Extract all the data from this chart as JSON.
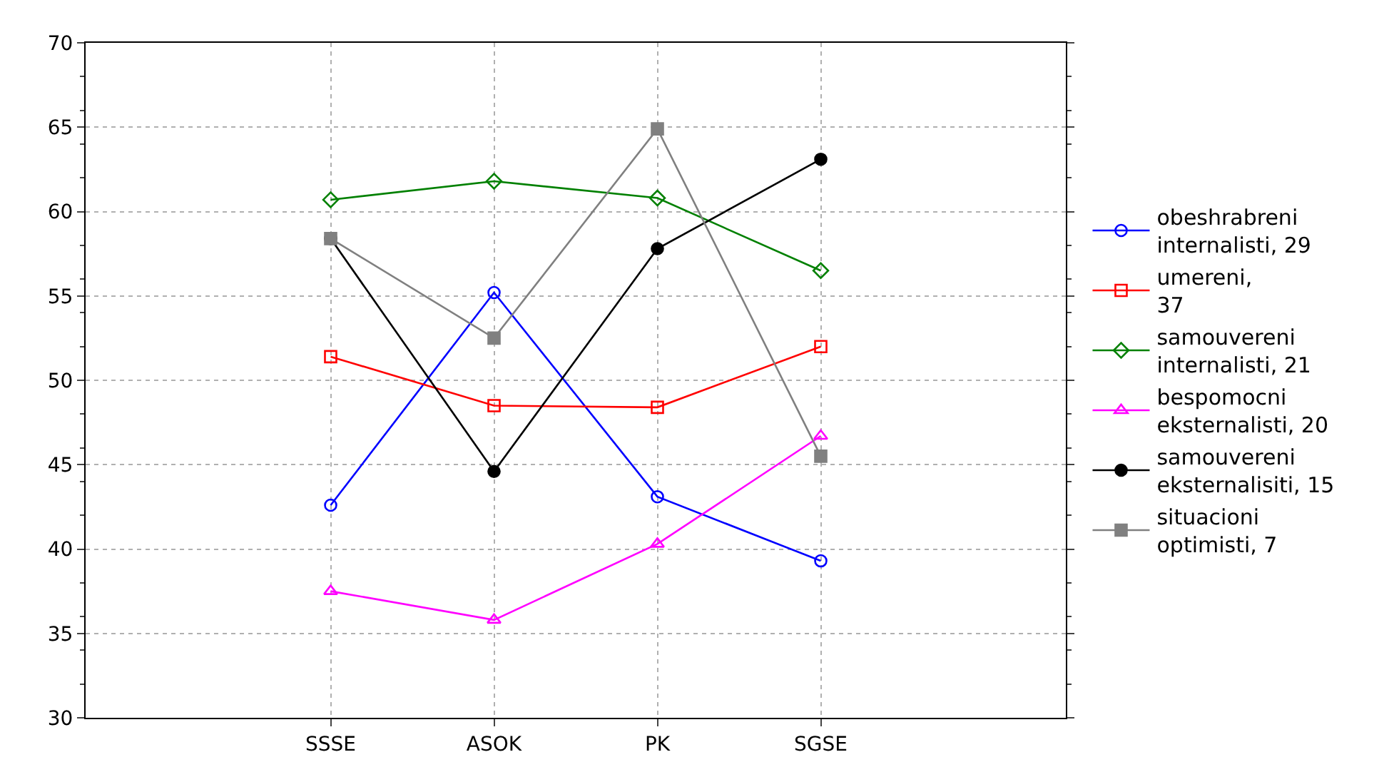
{
  "chart_data": {
    "type": "line",
    "categories": [
      "SSSE",
      "ASOK",
      "PK",
      "SGSE"
    ],
    "ylim": [
      30,
      70
    ],
    "yticks": [
      30,
      35,
      40,
      45,
      50,
      55,
      60,
      65,
      70
    ],
    "grid": true,
    "legend": "right",
    "line_style": "solid",
    "series": [
      {
        "name": "obeshrabreni\ninternalisti, 29",
        "color": "#0000ff",
        "marker": "circle",
        "values": [
          42.6,
          55.2,
          43.1,
          39.3
        ]
      },
      {
        "name": "umereni,\n37",
        "color": "#ff0000",
        "marker": "square",
        "values": [
          51.4,
          48.5,
          48.4,
          52.0
        ]
      },
      {
        "name": "samouvereni\ninternalisti, 21",
        "color": "#008000",
        "marker": "diamond",
        "values": [
          60.7,
          61.8,
          60.8,
          56.5
        ]
      },
      {
        "name": "bespomocni\neksternalisti, 20",
        "color": "#ff00ff",
        "marker": "triangle",
        "values": [
          37.5,
          35.8,
          40.3,
          46.7
        ]
      },
      {
        "name": "samouvereni\neksternalisiti, 15",
        "color": "#000000",
        "marker": "circle",
        "values": [
          58.4,
          44.6,
          57.8,
          63.1
        ]
      },
      {
        "name": "situacioni\noptimisti, 7",
        "color": "#808080",
        "marker": "square",
        "values": [
          58.4,
          52.5,
          64.9,
          45.5
        ]
      }
    ]
  }
}
